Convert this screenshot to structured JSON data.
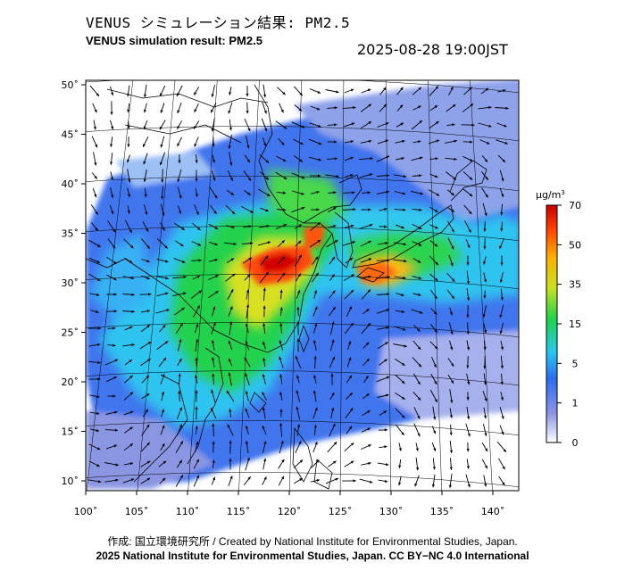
{
  "header": {
    "title_jp": "VENUS シミュレーション結果: PM2.5",
    "title_en": "VENUS simulation result: PM2.5",
    "timestamp": "2025-08-28 19:00JST"
  },
  "map": {
    "lon_range": [
      100,
      141
    ],
    "lat_range": [
      9,
      51
    ],
    "lon_ticks": [
      "100˚",
      "105˚",
      "110˚",
      "115˚",
      "120˚",
      "125˚",
      "130˚",
      "135˚",
      "140˚"
    ],
    "lat_ticks": [
      "10˚",
      "15˚",
      "20˚",
      "25˚",
      "30˚",
      "35˚",
      "40˚",
      "45˚",
      "50˚"
    ],
    "colors": {
      "ocean": "#ffffff",
      "land_outline": "#000000",
      "arrow": "#000000"
    }
  },
  "legend": {
    "unit_label": "μg/m",
    "unit_superscript": "3",
    "ticks": [
      "0",
      "1",
      "5",
      "15",
      "35",
      "50",
      "70"
    ],
    "colors": [
      "#ffffff",
      "#8e96e6",
      "#2c6cf0",
      "#29c6f0",
      "#1fd44c",
      "#c8e020",
      "#ffb000",
      "#ff4000",
      "#c80000"
    ]
  },
  "footer": {
    "credit": "作成: 国立環境研究所 / Created by National Institute for Environmental Studies, Japan.",
    "copyright": "2025 National Institute for Environmental Studies, Japan. CC BY−NC 4.0 International"
  }
}
